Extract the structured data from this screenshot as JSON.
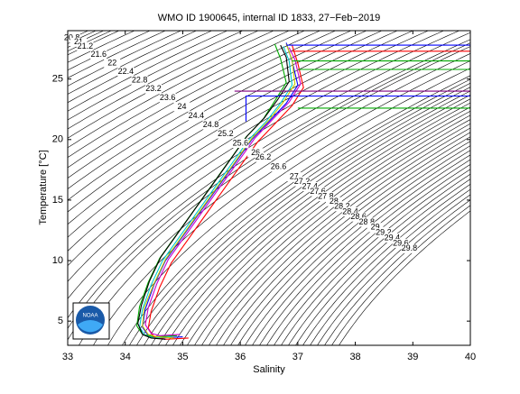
{
  "chart_data": {
    "type": "ts-diagram",
    "title": "WMO ID 1900645, internal ID 1833, 27−Feb−2019",
    "x_label": "Salinity",
    "y_label": "Temperature [°C]",
    "xlim": [
      33,
      40
    ],
    "ylim": [
      3,
      29
    ],
    "xticks": [
      33,
      34,
      35,
      36,
      37,
      38,
      39,
      40
    ],
    "yticks": [
      5,
      10,
      15,
      20,
      25
    ],
    "isopycnals": [
      20.8,
      21,
      21.2,
      21.6,
      22,
      22.4,
      22.8,
      23.2,
      23.6,
      24,
      24.4,
      24.8,
      25.2,
      25.6,
      26,
      26.2,
      26.6,
      27,
      27.2,
      27.4,
      27.6,
      27.8,
      28,
      28.2,
      28.4,
      28.6,
      28.8,
      29,
      29.2,
      29.4,
      29.6,
      29.8,
      30
    ],
    "logo_text": "NOAA",
    "profiles": [
      {
        "color": "#0000ff",
        "salinity": [
          35.0,
          34.6,
          34.4,
          34.3,
          34.35,
          34.5,
          34.7,
          35.0,
          35.3,
          35.6,
          35.9,
          36.2,
          36.5,
          36.8,
          37.0,
          36.9,
          36.8
        ],
        "temperature": [
          3.7,
          3.6,
          3.8,
          4.5,
          6,
          8,
          10,
          12,
          14,
          16,
          18,
          20,
          21.5,
          23,
          24.5,
          26.5,
          28
        ]
      },
      {
        "color": "#00aa00",
        "salinity": [
          34.9,
          34.5,
          34.3,
          34.2,
          34.25,
          34.4,
          34.6,
          34.9,
          35.2,
          35.5,
          35.8,
          36.1,
          36.4,
          36.6,
          36.8,
          36.7,
          36.6
        ],
        "temperature": [
          3.8,
          3.7,
          3.9,
          4.6,
          6.2,
          8.2,
          10.2,
          12.2,
          14.2,
          16.2,
          18.2,
          20.2,
          21.7,
          23.2,
          24.7,
          26.7,
          27.9
        ]
      },
      {
        "color": "#ff0000",
        "salinity": [
          35.1,
          34.7,
          34.5,
          34.4,
          34.45,
          34.6,
          34.8,
          35.1,
          35.4,
          35.7,
          36.0,
          36.3,
          36.6,
          36.9,
          37.1,
          37.0,
          36.9
        ],
        "temperature": [
          3.6,
          3.5,
          3.7,
          4.4,
          5.8,
          7.8,
          9.8,
          11.8,
          13.8,
          15.8,
          17.8,
          19.8,
          21.3,
          22.8,
          24.3,
          26.3,
          27.8
        ]
      },
      {
        "color": "#00cccc",
        "salinity": [
          34.8,
          34.5,
          34.35,
          34.25,
          34.3,
          34.45,
          34.65,
          34.95,
          35.25,
          35.55,
          35.85,
          36.15,
          36.45,
          36.7,
          36.9,
          36.85,
          36.75
        ],
        "temperature": [
          3.7,
          3.6,
          3.8,
          4.5,
          6,
          8,
          10,
          12,
          14,
          16,
          18,
          20,
          21.5,
          23,
          24.5,
          26.5,
          27.7
        ]
      },
      {
        "color": "#cc00cc",
        "salinity": [
          34.95,
          34.6,
          34.45,
          34.35,
          34.4,
          34.55,
          34.75,
          35.05,
          35.35,
          35.65,
          35.95,
          36.25,
          36.55,
          36.85,
          37.05,
          36.95,
          36.85
        ],
        "temperature": [
          3.9,
          3.8,
          4.0,
          4.7,
          6.1,
          8.1,
          10.1,
          12.1,
          14.1,
          16.1,
          18.1,
          20.1,
          21.6,
          23.1,
          24.6,
          26.6,
          27.6
        ]
      },
      {
        "color": "#000000",
        "salinity": [
          34.7,
          34.45,
          34.3,
          34.22,
          34.28,
          34.42,
          34.62,
          34.92,
          35.22,
          35.52,
          35.82,
          36.12,
          36.42,
          36.65,
          36.85,
          36.8,
          36.7
        ],
        "temperature": [
          3.5,
          3.6,
          3.9,
          4.8,
          6.3,
          8.3,
          10.3,
          12.3,
          14.3,
          16.3,
          18.3,
          20.3,
          21.8,
          23.3,
          24.8,
          26.8,
          27.8
        ]
      },
      {
        "color": "#cccc00",
        "salinity": [
          34.85,
          34.55,
          34.4,
          34.3,
          34.33,
          34.5,
          34.7,
          35.0,
          35.3,
          35.6,
          35.9,
          36.2,
          36.5,
          36.75,
          36.95,
          36.9,
          36.8
        ],
        "temperature": [
          3.6,
          3.7,
          3.9,
          4.6,
          6.1,
          8.1,
          10.1,
          12.1,
          14.1,
          16.1,
          18.1,
          20.1,
          21.6,
          23.1,
          24.6,
          26.6,
          27.9
        ]
      },
      {
        "color": "#ff0000",
        "salinity": [
          36.9,
          40
        ],
        "temperature": [
          27.3,
          27.3
        ]
      },
      {
        "color": "#0000ff",
        "salinity": [
          36.8,
          40
        ],
        "temperature": [
          27.8,
          27.8
        ]
      },
      {
        "color": "#00aa00",
        "salinity": [
          36.9,
          40
        ],
        "temperature": [
          26.5,
          26.5
        ]
      },
      {
        "color": "#00aa00",
        "salinity": [
          37.0,
          40
        ],
        "temperature": [
          25.8,
          25.8
        ]
      },
      {
        "color": "#800080",
        "salinity": [
          35.9,
          40
        ],
        "temperature": [
          24.0,
          24.0
        ]
      },
      {
        "color": "#0000ff",
        "salinity": [
          36.1,
          36.1,
          40
        ],
        "temperature": [
          21.5,
          23.6,
          23.6
        ]
      },
      {
        "color": "#00aa00",
        "salinity": [
          37.0,
          40
        ],
        "temperature": [
          22.6,
          22.6
        ]
      }
    ]
  }
}
